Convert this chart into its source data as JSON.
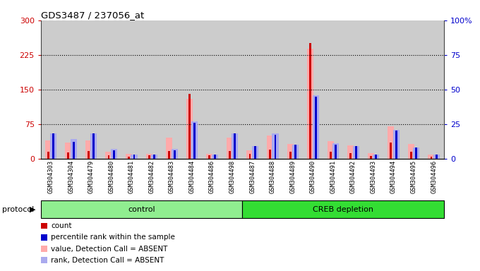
{
  "title": "GDS3487 / 237056_at",
  "samples": [
    "GSM304303",
    "GSM304304",
    "GSM304479",
    "GSM304480",
    "GSM304481",
    "GSM304482",
    "GSM304483",
    "GSM304484",
    "GSM304486",
    "GSM304498",
    "GSM304487",
    "GSM304488",
    "GSM304489",
    "GSM304490",
    "GSM304491",
    "GSM304492",
    "GSM304493",
    "GSM304494",
    "GSM304495",
    "GSM304496"
  ],
  "control_count": 10,
  "groups": [
    {
      "label": "control",
      "color": "#90ee90",
      "start": 0,
      "end": 10
    },
    {
      "label": "CREB depletion",
      "color": "#33dd33",
      "start": 10,
      "end": 20
    }
  ],
  "red_bars": [
    15,
    13,
    17,
    7,
    4,
    7,
    17,
    140,
    7,
    17,
    10,
    20,
    15,
    250,
    15,
    12,
    5,
    35,
    15,
    4
  ],
  "blue_bars": [
    18,
    12,
    18,
    6,
    3,
    3,
    6,
    26,
    3,
    18,
    9,
    17,
    10,
    45,
    10,
    9,
    3,
    20,
    8,
    3
  ],
  "pink_bars": [
    40,
    35,
    40,
    15,
    10,
    10,
    45,
    130,
    10,
    45,
    18,
    50,
    32,
    238,
    38,
    28,
    12,
    70,
    32,
    8
  ],
  "lightblue_bars": [
    18,
    14,
    18,
    7,
    3,
    3,
    7,
    27,
    3,
    18,
    9,
    18,
    10,
    46,
    11,
    9,
    3,
    21,
    8,
    3
  ],
  "ylim_left": [
    0,
    300
  ],
  "ylim_right": [
    0,
    100
  ],
  "yticks_left": [
    0,
    75,
    150,
    225,
    300
  ],
  "yticks_right": [
    0,
    25,
    50,
    75,
    100
  ],
  "left_tick_color": "#cc0000",
  "right_tick_color": "#0000cc",
  "plot_bg": "#ffffff",
  "protocol_label": "protocol",
  "legend_items": [
    {
      "color": "#cc0000",
      "label": "count"
    },
    {
      "color": "#0000cc",
      "label": "percentile rank within the sample"
    },
    {
      "color": "#ffaaaa",
      "label": "value, Detection Call = ABSENT"
    },
    {
      "color": "#aaaaee",
      "label": "rank, Detection Call = ABSENT"
    }
  ]
}
